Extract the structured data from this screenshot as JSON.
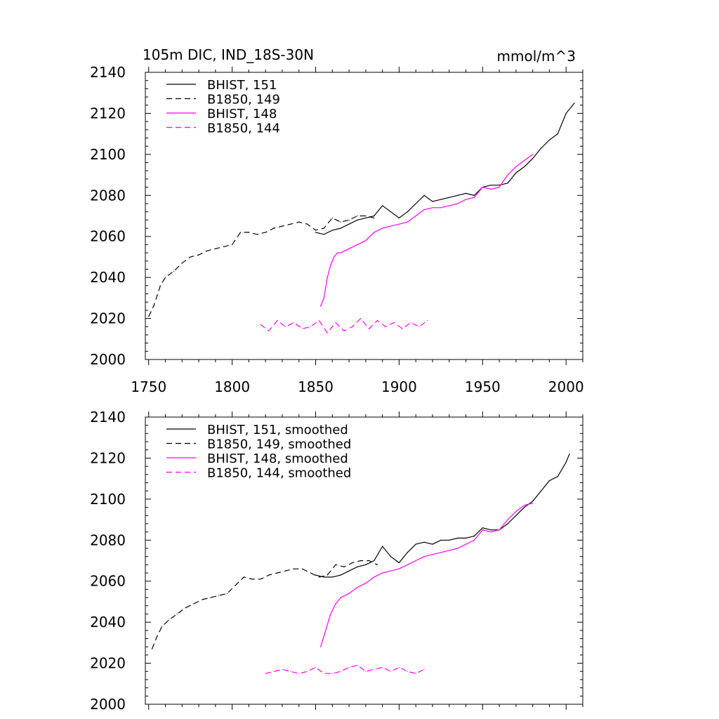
{
  "figure": {
    "title_left": "105m DIC, IND_18S-30N",
    "title_right": "mmol/m^3"
  },
  "chart_data": [
    {
      "type": "line",
      "panel": "top",
      "ylim": [
        2000,
        2140
      ],
      "xlim": [
        1748,
        2010
      ],
      "yticks": [
        2000,
        2020,
        2040,
        2060,
        2080,
        2100,
        2120,
        2140
      ],
      "ytick_labels": [
        "2000",
        "2020",
        "2040",
        "2060",
        "2080",
        "2100",
        "2120",
        "2140"
      ],
      "xticks": [
        1750,
        1800,
        1850,
        1900,
        1950,
        2000
      ],
      "xtick_labels": [
        "1750",
        "1800",
        "1850",
        "1900",
        "1950",
        "2000"
      ],
      "legend_position": "top-left",
      "series": [
        {
          "name": "BHIST, 151",
          "color": "#000000",
          "dash": "solid",
          "x": [
            1850,
            1855,
            1860,
            1865,
            1870,
            1875,
            1880,
            1885,
            1890,
            1895,
            1900,
            1905,
            1910,
            1915,
            1920,
            1925,
            1930,
            1935,
            1940,
            1945,
            1950,
            1955,
            1960,
            1965,
            1970,
            1975,
            1980,
            1985,
            1990,
            1995,
            2000,
            2005
          ],
          "y": [
            2062,
            2061,
            2063,
            2064,
            2066,
            2068,
            2069,
            2070,
            2075,
            2072,
            2069,
            2072,
            2076,
            2080,
            2077,
            2078,
            2079,
            2080,
            2081,
            2080,
            2084,
            2085,
            2085,
            2086,
            2091,
            2094,
            2098,
            2103,
            2107,
            2110,
            2120,
            2125
          ]
        },
        {
          "name": "B1850, 149",
          "color": "#000000",
          "dash": "dashed",
          "x": [
            1750,
            1753,
            1757,
            1760,
            1765,
            1770,
            1775,
            1780,
            1785,
            1790,
            1795,
            1800,
            1805,
            1810,
            1815,
            1820,
            1825,
            1830,
            1835,
            1840,
            1845,
            1850,
            1855,
            1860,
            1865,
            1870,
            1875,
            1880,
            1885
          ],
          "y": [
            2021,
            2026,
            2036,
            2040,
            2043,
            2047,
            2050,
            2051,
            2053,
            2054,
            2055,
            2056,
            2062,
            2062,
            2061,
            2062,
            2064,
            2065,
            2066,
            2067,
            2066,
            2063,
            2064,
            2069,
            2067,
            2068,
            2070,
            2070,
            2069
          ]
        },
        {
          "name": "BHIST, 148",
          "color": "#ff00ff",
          "dash": "solid",
          "x": [
            1853,
            1855,
            1857,
            1859,
            1861,
            1863,
            1865,
            1870,
            1875,
            1880,
            1885,
            1890,
            1895,
            1900,
            1905,
            1910,
            1915,
            1920,
            1925,
            1930,
            1935,
            1940,
            1945,
            1950,
            1955,
            1960,
            1965,
            1970,
            1975,
            1980
          ],
          "y": [
            2026,
            2030,
            2040,
            2046,
            2050,
            2052,
            2052,
            2054,
            2056,
            2058,
            2062,
            2064,
            2065,
            2066,
            2067,
            2070,
            2073,
            2074,
            2074,
            2075,
            2076,
            2078,
            2079,
            2084,
            2083,
            2084,
            2090,
            2094,
            2097,
            2100
          ]
        },
        {
          "name": "B1850, 144",
          "color": "#ff00ff",
          "dash": "dashed",
          "x": [
            1817,
            1822,
            1827,
            1832,
            1837,
            1842,
            1847,
            1852,
            1857,
            1862,
            1867,
            1872,
            1877,
            1882,
            1887,
            1892,
            1897,
            1902,
            1907,
            1912,
            1917
          ],
          "y": [
            2017,
            2014,
            2019,
            2016,
            2018,
            2015,
            2016,
            2019,
            2013,
            2018,
            2014,
            2016,
            2020,
            2015,
            2019,
            2016,
            2018,
            2015,
            2018,
            2016,
            2019
          ]
        }
      ]
    },
    {
      "type": "line",
      "panel": "bottom",
      "ylim": [
        2000,
        2140
      ],
      "xlim": [
        1748,
        2010
      ],
      "yticks": [
        2000,
        2020,
        2040,
        2060,
        2080,
        2100,
        2120,
        2140
      ],
      "ytick_labels": [
        "2000",
        "2020",
        "2040",
        "2060",
        "2080",
        "2100",
        "2120",
        "2140"
      ],
      "xticks": [
        1750,
        1800,
        1850,
        1900,
        1950,
        2000
      ],
      "legend_position": "top-left",
      "series": [
        {
          "name": "BHIST, 151, smoothed",
          "color": "#000000",
          "dash": "solid",
          "x": [
            1850,
            1855,
            1860,
            1865,
            1870,
            1875,
            1880,
            1885,
            1890,
            1895,
            1900,
            1905,
            1910,
            1915,
            1920,
            1925,
            1930,
            1935,
            1940,
            1945,
            1950,
            1955,
            1960,
            1965,
            1970,
            1975,
            1980,
            1985,
            1990,
            1995,
            2000,
            2002
          ],
          "y": [
            2063,
            2062,
            2062,
            2063,
            2065,
            2067,
            2068,
            2070,
            2077,
            2072,
            2069,
            2074,
            2078,
            2079,
            2078,
            2080,
            2080,
            2081,
            2081,
            2082,
            2086,
            2085,
            2085,
            2088,
            2092,
            2096,
            2099,
            2104,
            2109,
            2111,
            2118,
            2122
          ]
        },
        {
          "name": "B1850, 149, smoothed",
          "color": "#000000",
          "dash": "dashed",
          "x": [
            1752,
            1755,
            1758,
            1762,
            1767,
            1772,
            1777,
            1782,
            1787,
            1792,
            1797,
            1802,
            1807,
            1812,
            1817,
            1822,
            1827,
            1832,
            1837,
            1842,
            1847,
            1852,
            1857,
            1862,
            1867,
            1872,
            1877,
            1882,
            1887
          ],
          "y": [
            2027,
            2033,
            2038,
            2041,
            2044,
            2047,
            2049,
            2051,
            2052,
            2053,
            2054,
            2058,
            2062,
            2061,
            2061,
            2063,
            2064,
            2065,
            2066,
            2066,
            2064,
            2062,
            2063,
            2068,
            2067,
            2069,
            2070,
            2070,
            2068
          ]
        },
        {
          "name": "BHIST, 148, smoothed",
          "color": "#ff00ff",
          "dash": "solid",
          "x": [
            1853,
            1856,
            1859,
            1862,
            1865,
            1870,
            1875,
            1880,
            1885,
            1890,
            1895,
            1900,
            1905,
            1910,
            1915,
            1920,
            1925,
            1930,
            1935,
            1940,
            1945,
            1950,
            1955,
            1960,
            1965,
            1970,
            1975,
            1980
          ],
          "y": [
            2028,
            2036,
            2044,
            2049,
            2052,
            2054,
            2057,
            2059,
            2062,
            2064,
            2065,
            2066,
            2068,
            2070,
            2072,
            2073,
            2074,
            2075,
            2076,
            2078,
            2080,
            2085,
            2084,
            2085,
            2090,
            2094,
            2097,
            2098
          ]
        },
        {
          "name": "B1850, 144, smoothed",
          "color": "#ff00ff",
          "dash": "dashed",
          "x": [
            1820,
            1825,
            1830,
            1835,
            1840,
            1845,
            1850,
            1855,
            1860,
            1865,
            1870,
            1875,
            1880,
            1885,
            1890,
            1895,
            1900,
            1905,
            1910,
            1915
          ],
          "y": [
            2015,
            2016,
            2017,
            2016,
            2015,
            2016,
            2018,
            2015,
            2015,
            2016,
            2018,
            2019,
            2016,
            2017,
            2018,
            2016,
            2018,
            2016,
            2015,
            2017
          ]
        }
      ]
    }
  ]
}
